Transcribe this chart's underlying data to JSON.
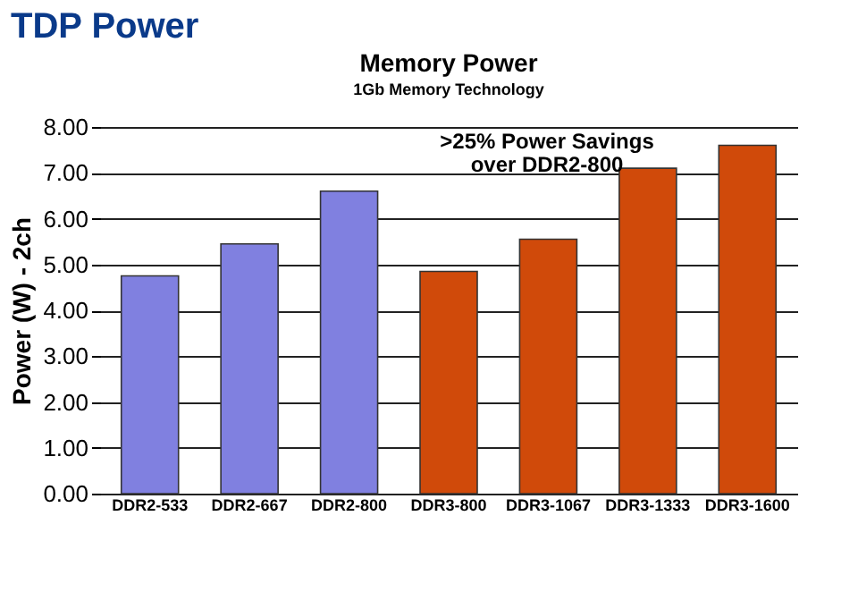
{
  "chart_data": {
    "type": "bar",
    "title": "TDP Power",
    "subtitle": "Memory Power",
    "ylabel": "Power (W) - 2ch",
    "categories": [
      "DDR2-533",
      "DDR2-667",
      "DDR2-800",
      "DDR3-800",
      "DDR3-1067",
      "DDR3-1333",
      "DDR3-1600"
    ],
    "values": [
      4.75,
      5.45,
      6.6,
      4.85,
      5.55,
      7.1,
      7.6
    ],
    "colors": [
      "#8080e0",
      "#8080e0",
      "#8080e0",
      "#d04a0a",
      "#d04a0a",
      "#d04a0a",
      "#d04a0a"
    ],
    "ylim": [
      0,
      8
    ],
    "yticks": [
      {
        "value": 0,
        "label": "0.00"
      },
      {
        "value": 1,
        "label": "1.00"
      },
      {
        "value": 2,
        "label": "2.00"
      },
      {
        "value": 3,
        "label": "3.00"
      },
      {
        "value": 4,
        "label": "4.00"
      },
      {
        "value": 5,
        "label": "5.00"
      },
      {
        "value": 6,
        "label": "6.00"
      },
      {
        "value": 7,
        "label": "7.00"
      },
      {
        "value": 8,
        "label": "8.00"
      }
    ],
    "grid": "y",
    "annotations": [
      "1Gb Memory Technology",
      ">25% Power Savings over DDR2-800"
    ]
  }
}
